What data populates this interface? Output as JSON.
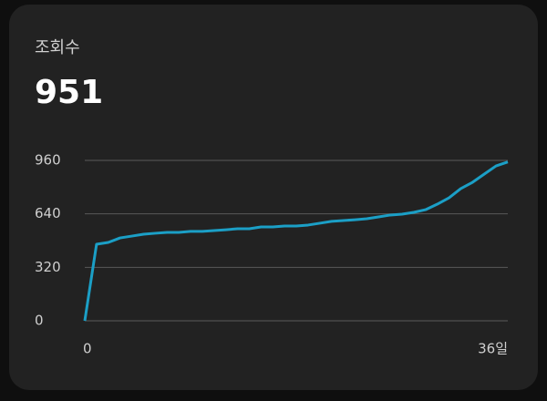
{
  "title": "조회수",
  "total": "951",
  "chart_data": {
    "type": "line",
    "x": [
      0,
      1,
      2,
      3,
      4,
      5,
      6,
      7,
      8,
      9,
      10,
      11,
      12,
      13,
      14,
      15,
      16,
      17,
      18,
      19,
      20,
      21,
      22,
      23,
      24,
      25,
      26,
      27,
      28,
      29,
      30,
      31,
      32,
      33,
      34,
      35,
      36
    ],
    "values": [
      0,
      458,
      469,
      496,
      507,
      518,
      524,
      529,
      529,
      535,
      535,
      540,
      545,
      551,
      551,
      562,
      562,
      567,
      567,
      573,
      584,
      595,
      600,
      605,
      611,
      622,
      633,
      638,
      649,
      665,
      698,
      736,
      791,
      829,
      878,
      927,
      951
    ],
    "color": "#1b9fc6",
    "xlim": [
      0,
      36
    ],
    "xticks": [
      0,
      {
        "value": 36,
        "label": "36일"
      }
    ],
    "ylim": [
      0,
      960
    ],
    "yticks": [
      0,
      320,
      640,
      960
    ],
    "grid": true
  }
}
